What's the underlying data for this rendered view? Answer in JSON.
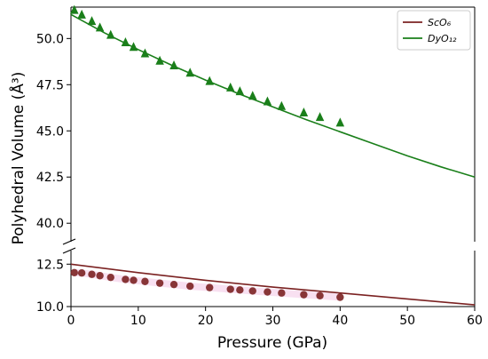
{
  "chart_data": {
    "type": "scatter",
    "xlabel": "Pressure (GPa)",
    "ylabel": "Polyhedral Volume (Å³)",
    "xlim": [
      0,
      60
    ],
    "x_ticks": [
      "0",
      "10",
      "20",
      "30",
      "40",
      "50",
      "60"
    ],
    "broken_axis": true,
    "upper_ylim": [
      39,
      51.7
    ],
    "upper_y_ticks": [
      "40.0",
      "42.5",
      "45.0",
      "47.5",
      "50.0"
    ],
    "lower_ylim": [
      10,
      13.3
    ],
    "lower_y_ticks": [
      "10.0",
      "12.5"
    ],
    "legend_position": "top-right",
    "series": [
      {
        "name": "ScO₆",
        "color": "#7b2222",
        "marker": "circle",
        "panel": "lower",
        "points": [
          {
            "x": 0.5,
            "y": 12.0
          },
          {
            "x": 1.6,
            "y": 11.98
          },
          {
            "x": 3.1,
            "y": 11.9
          },
          {
            "x": 4.3,
            "y": 11.82
          },
          {
            "x": 5.9,
            "y": 11.72
          },
          {
            "x": 8.1,
            "y": 11.6
          },
          {
            "x": 9.3,
            "y": 11.55
          },
          {
            "x": 11.0,
            "y": 11.48
          },
          {
            "x": 13.2,
            "y": 11.38
          },
          {
            "x": 15.3,
            "y": 11.3
          },
          {
            "x": 17.7,
            "y": 11.2
          },
          {
            "x": 20.6,
            "y": 11.12
          },
          {
            "x": 23.7,
            "y": 11.02
          },
          {
            "x": 25.1,
            "y": 10.98
          },
          {
            "x": 27.0,
            "y": 10.92
          },
          {
            "x": 29.2,
            "y": 10.86
          },
          {
            "x": 31.3,
            "y": 10.8
          },
          {
            "x": 34.6,
            "y": 10.7
          },
          {
            "x": 37.0,
            "y": 10.64
          },
          {
            "x": 40.0,
            "y": 10.55
          }
        ],
        "fit": [
          {
            "x": 0,
            "y": 12.5
          },
          {
            "x": 10,
            "y": 12.0
          },
          {
            "x": 20,
            "y": 11.55
          },
          {
            "x": 30,
            "y": 11.15
          },
          {
            "x": 40,
            "y": 10.8
          },
          {
            "x": 50,
            "y": 10.45
          },
          {
            "x": 60,
            "y": 10.1
          }
        ]
      },
      {
        "name": "DyO₁₂",
        "color": "#1a7f1a",
        "marker": "triangle",
        "panel": "upper",
        "points": [
          {
            "x": 0.5,
            "y": 51.55
          },
          {
            "x": 1.6,
            "y": 51.3
          },
          {
            "x": 3.1,
            "y": 50.95
          },
          {
            "x": 4.3,
            "y": 50.6
          },
          {
            "x": 5.9,
            "y": 50.2
          },
          {
            "x": 8.1,
            "y": 49.8
          },
          {
            "x": 9.3,
            "y": 49.55
          },
          {
            "x": 11.0,
            "y": 49.2
          },
          {
            "x": 13.2,
            "y": 48.8
          },
          {
            "x": 15.3,
            "y": 48.55
          },
          {
            "x": 17.7,
            "y": 48.15
          },
          {
            "x": 20.6,
            "y": 47.7
          },
          {
            "x": 23.7,
            "y": 47.35
          },
          {
            "x": 25.1,
            "y": 47.15
          },
          {
            "x": 27.0,
            "y": 46.9
          },
          {
            "x": 29.2,
            "y": 46.6
          },
          {
            "x": 31.3,
            "y": 46.35
          },
          {
            "x": 34.6,
            "y": 46.0
          },
          {
            "x": 37.0,
            "y": 45.75
          },
          {
            "x": 40.0,
            "y": 45.45
          }
        ],
        "fit": [
          {
            "x": 0,
            "y": 51.3
          },
          {
            "x": 5,
            "y": 50.3
          },
          {
            "x": 10,
            "y": 49.4
          },
          {
            "x": 15,
            "y": 48.55
          },
          {
            "x": 20,
            "y": 47.75
          },
          {
            "x": 25,
            "y": 47.0
          },
          {
            "x": 30,
            "y": 46.3
          },
          {
            "x": 35,
            "y": 45.6
          },
          {
            "x": 40,
            "y": 44.95
          },
          {
            "x": 45,
            "y": 44.3
          },
          {
            "x": 50,
            "y": 43.65
          },
          {
            "x": 55,
            "y": 43.05
          },
          {
            "x": 60,
            "y": 42.5
          }
        ]
      }
    ]
  }
}
